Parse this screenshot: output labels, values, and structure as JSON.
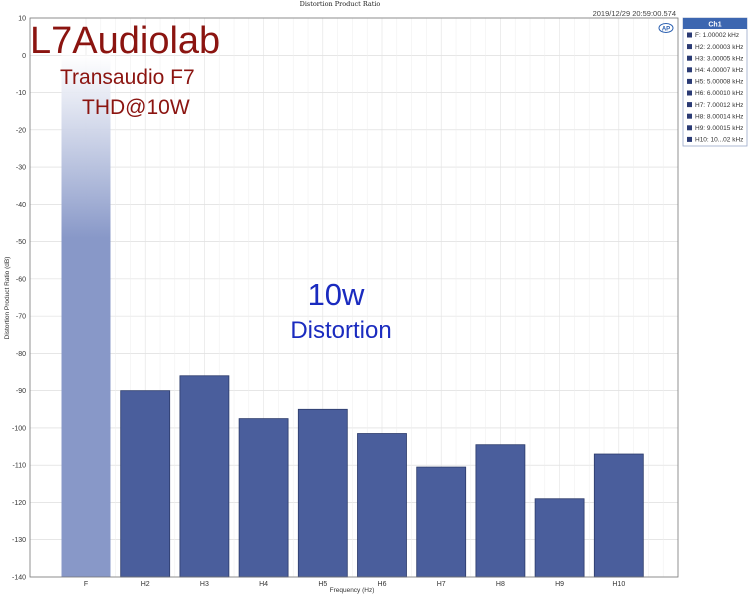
{
  "chart_data": {
    "type": "bar",
    "title": "Distortion Product Ratio",
    "timestamp": "2019/12/29 20:59:00.574",
    "xlabel": "Frequency (Hz)",
    "ylabel": "Distortion Product Ratio (dB)",
    "ylim": [
      -140,
      10
    ],
    "yticks": [
      10,
      0,
      -10,
      -20,
      -30,
      -40,
      -50,
      -60,
      -70,
      -80,
      -90,
      -100,
      -110,
      -120,
      -130,
      -140
    ],
    "categories": [
      "F",
      "H2",
      "H3",
      "H4",
      "H5",
      "H6",
      "H7",
      "H8",
      "H9",
      "H10"
    ],
    "values": [
      0,
      -90,
      -86,
      -97.5,
      -95,
      -101.5,
      -110.5,
      -104.5,
      -119,
      -107
    ],
    "grid": true,
    "bar_color": "#4a5e9c",
    "fundamental_color": "#8898c8",
    "legend": {
      "placement": "top-right",
      "header": "Ch1",
      "entries": [
        "F: 1.00002 kHz",
        "H2: 2.00003 kHz",
        "H3: 3.00005 kHz",
        "H4: 4.00007 kHz",
        "H5: 5.00008 kHz",
        "H6: 6.00010 kHz",
        "H7: 7.00012 kHz",
        "H8: 8.00014 kHz",
        "H9: 9.00015 kHz",
        "H10: 10...02 kHz"
      ]
    },
    "annotations": {
      "brand": "L7Audiolab",
      "model": "Transaudio F7",
      "condition": "THD@10W",
      "power": "10w",
      "label": "Distortion"
    }
  },
  "logo_icon": "ap-logo-icon"
}
